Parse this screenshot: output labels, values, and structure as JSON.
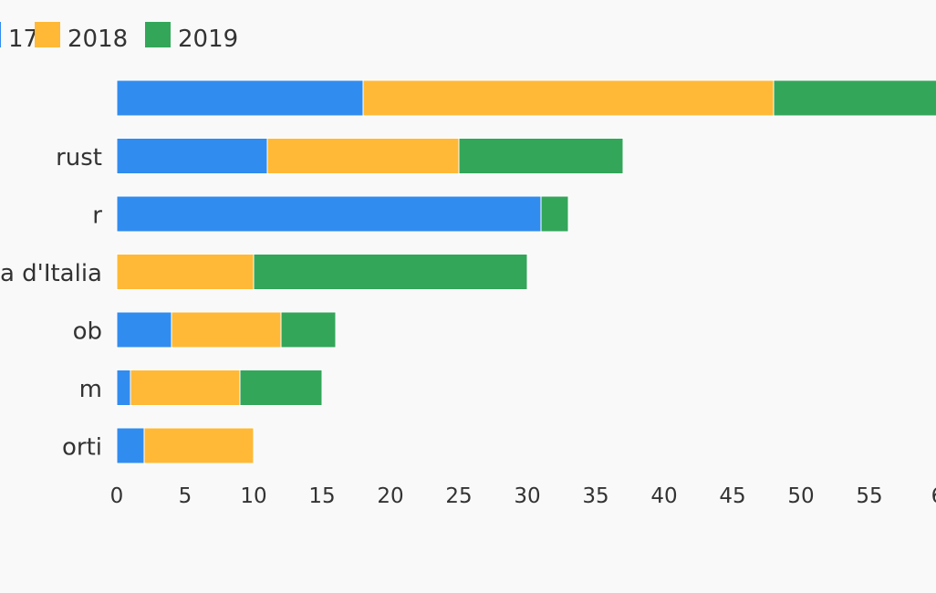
{
  "chart_data": {
    "type": "bar",
    "orientation": "horizontal",
    "stacked": true,
    "categories": [
      "",
      "rust",
      "r",
      "a d'Italia",
      "ob",
      "m",
      "orti"
    ],
    "series": [
      {
        "name": "17",
        "color": "#318cef",
        "values": [
          18,
          11,
          31,
          0,
          4,
          1,
          2
        ]
      },
      {
        "name": "2018",
        "color": "#ffb937",
        "values": [
          30,
          14,
          0,
          10,
          8,
          8,
          8
        ]
      },
      {
        "name": "2019",
        "color": "#33a65a",
        "values": [
          12,
          12,
          2,
          20,
          4,
          6,
          0
        ]
      }
    ],
    "xticks": [
      "0",
      "5",
      "10",
      "15",
      "20",
      "25",
      "30",
      "35",
      "40",
      "45",
      "50",
      "55",
      "6"
    ],
    "xlim": [
      0,
      60
    ],
    "grid": false,
    "legend_position": "top-left"
  }
}
